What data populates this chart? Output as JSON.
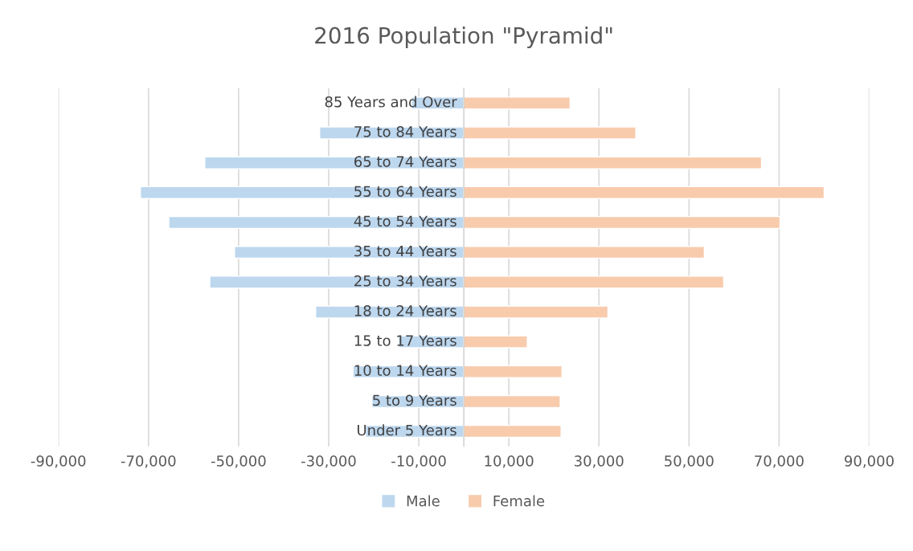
{
  "chart_data": {
    "type": "bar",
    "orientation": "horizontal",
    "stacked": true,
    "title": "2016 Population \"Pyramid\"",
    "categories": [
      "85 Years and Over",
      "75 to 84 Years",
      "65 to 74 Years",
      "55 to 64 Years",
      "45 to 54 Years",
      "35 to 44 Years",
      "25 to 34 Years",
      "18 to 24 Years",
      "15 to 17 Years",
      "10 to 14 Years",
      "5 to 9 Years",
      "Under 5 Years"
    ],
    "series": [
      {
        "name": "Male",
        "color": "#bdd7ee",
        "values": [
          -11600,
          -32000,
          -57500,
          -71800,
          -65500,
          -50900,
          -56400,
          -32900,
          -14500,
          -24600,
          -20400,
          -21800
        ]
      },
      {
        "name": "Female",
        "color": "#f8cbad",
        "values": [
          23600,
          38200,
          66100,
          80000,
          70200,
          53400,
          57700,
          32000,
          14100,
          21800,
          21400,
          21600
        ]
      }
    ],
    "xlim": [
      -90000,
      90000
    ],
    "xticks": [
      {
        "value": -90000,
        "label": "-90,000"
      },
      {
        "value": -70000,
        "label": "-70,000"
      },
      {
        "value": -50000,
        "label": "-50,000"
      },
      {
        "value": -30000,
        "label": "-30,000"
      },
      {
        "value": -10000,
        "label": "-10,000"
      },
      {
        "value": 10000,
        "label": "10,000"
      },
      {
        "value": 30000,
        "label": "30,000"
      },
      {
        "value": 50000,
        "label": "50,000"
      },
      {
        "value": 70000,
        "label": "70,000"
      },
      {
        "value": 90000,
        "label": "90,000"
      }
    ],
    "grid": "x",
    "legend": "bottom"
  }
}
